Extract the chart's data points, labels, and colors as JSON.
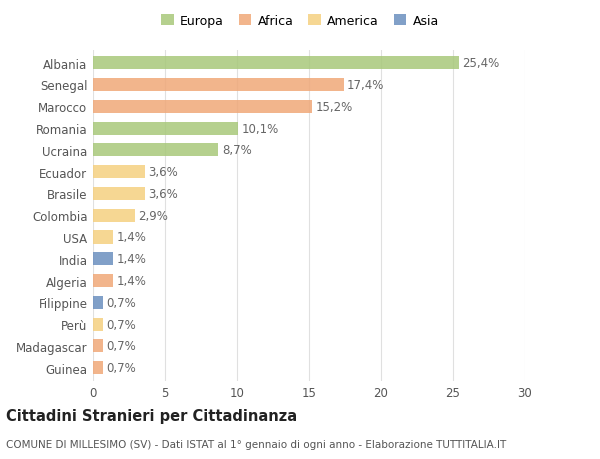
{
  "categories": [
    "Albania",
    "Senegal",
    "Marocco",
    "Romania",
    "Ucraina",
    "Ecuador",
    "Brasile",
    "Colombia",
    "USA",
    "India",
    "Algeria",
    "Filippine",
    "Perù",
    "Madagascar",
    "Guinea"
  ],
  "values": [
    25.4,
    17.4,
    15.2,
    10.1,
    8.7,
    3.6,
    3.6,
    2.9,
    1.4,
    1.4,
    1.4,
    0.7,
    0.7,
    0.7,
    0.7
  ],
  "labels": [
    "25,4%",
    "17,4%",
    "15,2%",
    "10,1%",
    "8,7%",
    "3,6%",
    "3,6%",
    "2,9%",
    "1,4%",
    "1,4%",
    "1,4%",
    "0,7%",
    "0,7%",
    "0,7%",
    "0,7%"
  ],
  "colors": [
    "#a8c87a",
    "#f0a878",
    "#f0a878",
    "#a8c87a",
    "#a8c87a",
    "#f5d080",
    "#f5d080",
    "#f5d080",
    "#f5d080",
    "#6b8fbf",
    "#f0a878",
    "#6b8fbf",
    "#f5d080",
    "#f0a878",
    "#f0a878"
  ],
  "legend_labels": [
    "Europa",
    "Africa",
    "America",
    "Asia"
  ],
  "legend_colors": [
    "#a8c87a",
    "#f0a878",
    "#f5d080",
    "#6b8fbf"
  ],
  "title": "Cittadini Stranieri per Cittadinanza",
  "subtitle": "COMUNE DI MILLESIMO (SV) - Dati ISTAT al 1° gennaio di ogni anno - Elaborazione TUTTITALIA.IT",
  "xlim": [
    0,
    30
  ],
  "xticks": [
    0,
    5,
    10,
    15,
    20,
    25,
    30
  ],
  "background_color": "#ffffff",
  "bar_height": 0.6,
  "grid_color": "#e0e0e0",
  "label_fontsize": 8.5,
  "tick_fontsize": 8.5,
  "title_fontsize": 10.5,
  "subtitle_fontsize": 7.5,
  "legend_fontsize": 9
}
